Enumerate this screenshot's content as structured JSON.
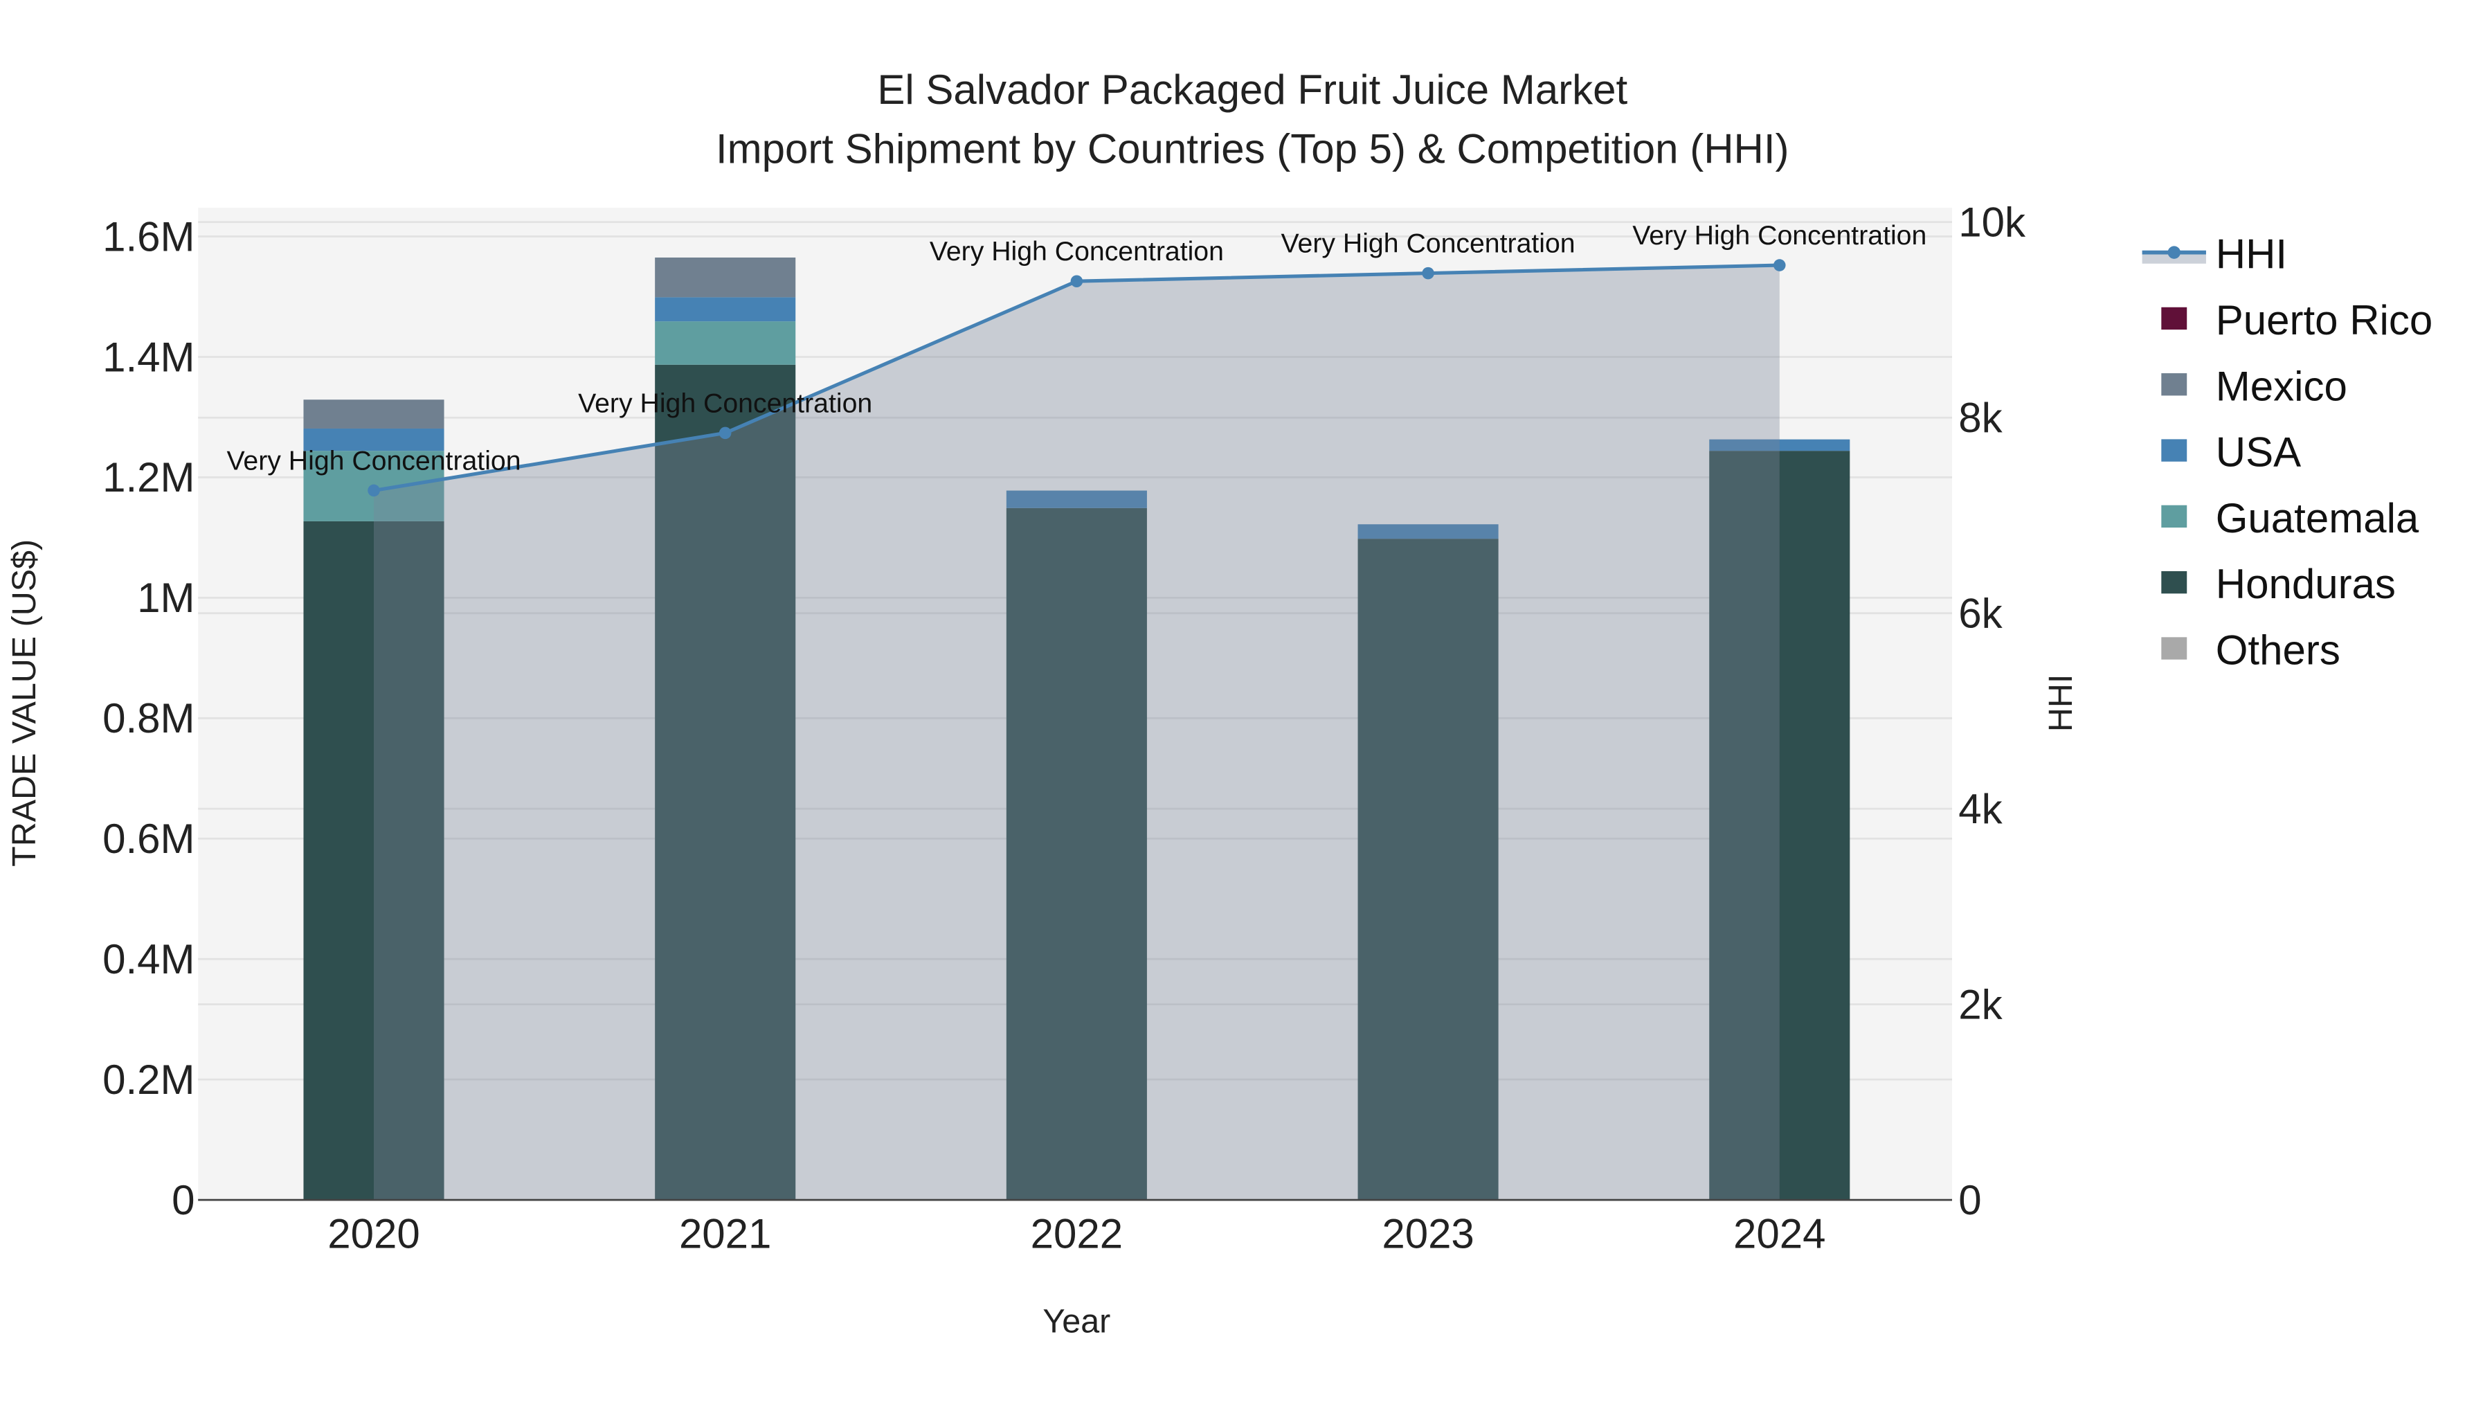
{
  "chart_data": {
    "type": "bar",
    "title_line1": "El Salvador Packaged Fruit Juice Market",
    "title_line2": "Import Shipment by Countries (Top 5) & Competition (HHI)",
    "xlabel": "Year",
    "ylabel": "TRADE VALUE (US$)",
    "y2label": "HHI",
    "categories": [
      "2020",
      "2021",
      "2022",
      "2023",
      "2024"
    ],
    "ylim": [
      0,
      1600000
    ],
    "y_ticks": [
      0,
      200000,
      400000,
      600000,
      800000,
      1000000,
      1200000,
      1400000,
      1600000
    ],
    "y_tick_labels": [
      "0",
      "0.2M",
      "0.4M",
      "0.6M",
      "0.8M",
      "1M",
      "1.2M",
      "1.4M",
      "1.6M"
    ],
    "y2lim": [
      0,
      10000
    ],
    "y2_ticks": [
      0,
      2000,
      4000,
      6000,
      8000,
      10000
    ],
    "y2_tick_labels": [
      "0",
      "2k",
      "4k",
      "6k",
      "8k",
      "10k"
    ],
    "series": [
      {
        "name": "Honduras",
        "color": "#2F4F4F",
        "values": [
          1127000,
          1387000,
          1149000,
          1098000,
          1244000
        ]
      },
      {
        "name": "Guatemala",
        "color": "#5F9EA0",
        "values": [
          117000,
          72000,
          0,
          0,
          0
        ]
      },
      {
        "name": "USA",
        "color": "#4682B4",
        "values": [
          37000,
          40000,
          29000,
          24000,
          19000
        ]
      },
      {
        "name": "Mexico",
        "color": "#708090",
        "values": [
          48000,
          66000,
          0,
          0,
          0
        ]
      },
      {
        "name": "Puerto Rico",
        "color": "#601038",
        "values": [
          0,
          0,
          0,
          0,
          0
        ]
      },
      {
        "name": "Others",
        "color": "#A9A9A9",
        "values": [
          0,
          0,
          0,
          0,
          0
        ]
      }
    ],
    "hhi": {
      "name": "HHI",
      "color": "#4682B4",
      "values": [
        7255,
        7843,
        9395,
        9477,
        9559
      ],
      "annotations": [
        "Very High Concentration",
        "Very High Concentration",
        "Very High Concentration",
        "Very High Concentration",
        "Very High Concentration"
      ]
    },
    "legend_order": [
      "HHI",
      "Puerto Rico",
      "Mexico",
      "USA",
      "Guatemala",
      "Honduras",
      "Others"
    ],
    "legend_placement": "right",
    "grid": true
  }
}
